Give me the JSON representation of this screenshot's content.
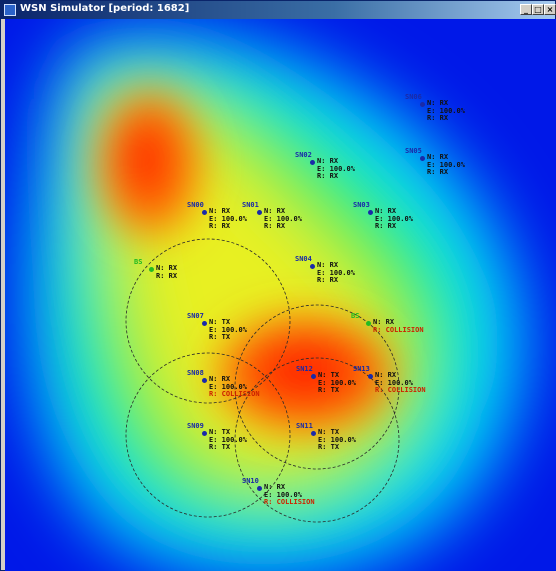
{
  "window": {
    "title": "WSN Simulator [period: 1682]",
    "minimize_glyph": "_",
    "maximize_glyph": "□",
    "close_glyph": "×"
  },
  "colors": {
    "base_node": "#22bb22",
    "sensor_node": "#1a2aa8",
    "text_normal": "#111111",
    "text_collision": "#cc2200"
  },
  "nodes": [
    {
      "name": "SN06",
      "lines": [
        "N: RX",
        "E: 100.0%",
        "R: RX"
      ]
    },
    {
      "name": "SN05",
      "lines": [
        "N: RX",
        "E: 100.0%",
        "R: RX"
      ]
    },
    {
      "name": "SN02",
      "lines": [
        "N: RX",
        "E: 100.0%",
        "R: RX"
      ]
    },
    {
      "name": "SN00",
      "lines": [
        "N: RX",
        "E: 100.0%",
        "R: RX"
      ]
    },
    {
      "name": "SN01",
      "lines": [
        "N: RX",
        "E: 100.0%",
        "R: RX"
      ]
    },
    {
      "name": "SN03",
      "lines": [
        "N: RX",
        "E: 100.0%",
        "R: RX"
      ]
    },
    {
      "name": "BS",
      "lines": [
        "N: RX",
        "R: RX"
      ],
      "base": true
    },
    {
      "name": "SN04",
      "lines": [
        "N: RX",
        "E: 100.0%",
        "R: RX"
      ]
    },
    {
      "name": "SN07",
      "lines": [
        "N: TX",
        "E: 100.0%",
        "R: TX"
      ]
    },
    {
      "name": "BS2",
      "lines": [
        "N: RX",
        "R: COLLISION"
      ],
      "base": true,
      "collision": true
    },
    {
      "name": "SN08",
      "lines": [
        "N: RX",
        "E: 100.0%",
        "R: COLLISION"
      ],
      "collision": true
    },
    {
      "name": "SN12",
      "lines": [
        "N: TX",
        "E: 100.0%",
        "R: TX"
      ]
    },
    {
      "name": "SN13",
      "lines": [
        "N: RX",
        "E: 100.0%",
        "R: COLLISION"
      ],
      "collision": true
    },
    {
      "name": "SN09",
      "lines": [
        "N: TX",
        "E: 100.0%",
        "R: TX"
      ]
    },
    {
      "name": "SN11",
      "lines": [
        "N: TX",
        "E: 100.0%",
        "R: TX"
      ]
    },
    {
      "name": "SN10",
      "lines": [
        "N: RX",
        "E: 100.0%",
        "R: COLLISION"
      ],
      "collision": true
    }
  ]
}
